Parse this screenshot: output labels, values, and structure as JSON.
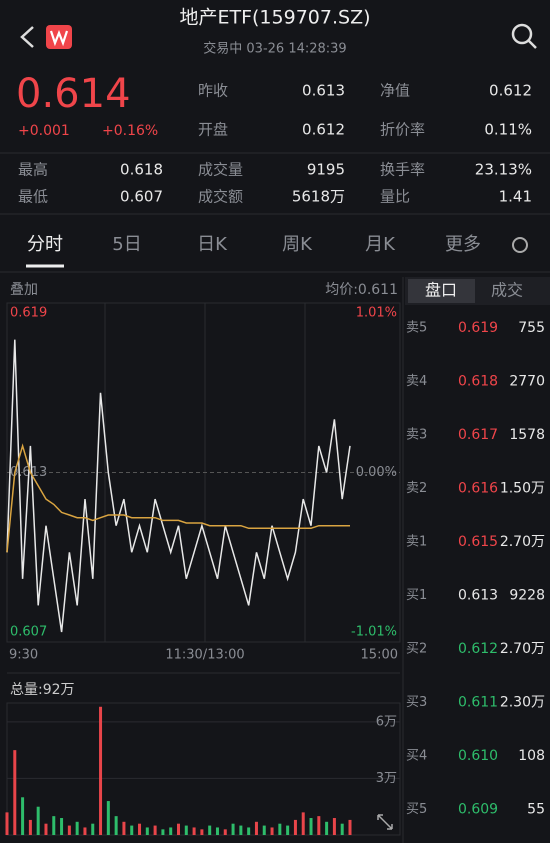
{
  "header": {
    "title": "地产ETF(159707.SZ)",
    "subtitle": "交易中 03-26 14:28:39"
  },
  "quote": {
    "price": "0.614",
    "change": "+0.001",
    "change_pct": "+0.16%"
  },
  "stats": [
    {
      "label": "昨收",
      "value": "0.613"
    },
    {
      "label": "净值",
      "value": "0.612"
    },
    {
      "label": "开盘",
      "value": "0.612"
    },
    {
      "label": "折价率",
      "value": "0.11%"
    },
    {
      "label": "最高",
      "value": "0.618"
    },
    {
      "label": "成交量",
      "value": "9195"
    },
    {
      "label": "换手率",
      "value": "23.13%"
    },
    {
      "label": "最低",
      "value": "0.607"
    },
    {
      "label": "成交额",
      "value": "5618万"
    },
    {
      "label": "量比",
      "value": "1.41"
    }
  ],
  "tabs": [
    "分时",
    "5日",
    "日K",
    "周K",
    "月K",
    "更多"
  ],
  "chart_data": {
    "type": "line",
    "overlay_label": "叠加",
    "avg_label": "均价:0.611",
    "ylim": [
      0.607,
      0.619
    ],
    "yticks": [
      0.619,
      0.613,
      0.607
    ],
    "y2lim": [
      -1.01,
      1.01
    ],
    "y2ticks": [
      {
        "value": 1.01,
        "label": "1.01%"
      },
      {
        "value": 0,
        "label": "0.00%"
      },
      {
        "value": -1.01,
        "label": "-1.01%"
      }
    ],
    "x_labels": [
      "9:30",
      "11:30/13:00",
      "15:00"
    ],
    "series": [
      {
        "color": "#e8e8e8",
        "values": [
          0.61,
          0.618,
          0.609,
          0.614,
          0.608,
          0.611,
          0.609,
          0.607,
          0.61,
          0.608,
          0.612,
          0.609,
          0.616,
          0.613,
          0.611,
          0.612,
          0.61,
          0.611,
          0.61,
          0.612,
          0.611,
          0.61,
          0.611,
          0.609,
          0.61,
          0.611,
          0.61,
          0.609,
          0.611,
          0.61,
          0.609,
          0.608,
          0.61,
          0.609,
          0.611,
          0.61,
          0.609,
          0.61,
          0.612,
          0.611,
          0.614,
          0.613,
          0.615,
          0.612,
          0.614
        ]
      },
      {
        "color": "#d9a441",
        "values": [
          0.61,
          0.613,
          0.614,
          0.613,
          0.6125,
          0.612,
          0.6118,
          0.6115,
          0.6114,
          0.6113,
          0.6113,
          0.6112,
          0.6113,
          0.6114,
          0.6114,
          0.6114,
          0.6113,
          0.6113,
          0.6113,
          0.6113,
          0.6112,
          0.6112,
          0.6112,
          0.6111,
          0.6111,
          0.6111,
          0.611,
          0.611,
          0.611,
          0.611,
          0.611,
          0.6109,
          0.6109,
          0.6109,
          0.6109,
          0.6109,
          0.6109,
          0.6109,
          0.6109,
          0.6109,
          0.611,
          0.611,
          0.611,
          0.611,
          0.611
        ]
      }
    ]
  },
  "volume_chart": {
    "type": "bar",
    "title": "总量:92万",
    "ylim": [
      0,
      7
    ],
    "yticks": [
      {
        "value": 6,
        "label": "6万"
      },
      {
        "value": 3,
        "label": "3万"
      }
    ],
    "values": [
      1.2,
      4.5,
      2.0,
      0.8,
      1.5,
      0.6,
      1.0,
      0.9,
      0.5,
      0.7,
      0.4,
      0.6,
      6.8,
      1.8,
      1.0,
      0.7,
      0.5,
      0.6,
      0.4,
      0.5,
      0.3,
      0.4,
      0.6,
      0.5,
      0.4,
      0.3,
      0.5,
      0.4,
      0.3,
      0.6,
      0.5,
      0.4,
      0.7,
      0.5,
      0.4,
      0.6,
      0.5,
      0.8,
      1.2,
      0.9,
      1.0,
      0.7,
      0.9,
      0.6,
      0.8
    ],
    "colors": [
      "#e8454a",
      "#e8454a",
      "#2ebd6b",
      "#e8454a",
      "#2ebd6b",
      "#e8454a",
      "#2ebd6b",
      "#2ebd6b",
      "#e8454a",
      "#2ebd6b",
      "#e8454a",
      "#2ebd6b",
      "#e8454a",
      "#2ebd6b",
      "#2ebd6b",
      "#e8454a",
      "#2ebd6b",
      "#e8454a",
      "#2ebd6b",
      "#e8454a",
      "#2ebd6b",
      "#2ebd6b",
      "#e8454a",
      "#2ebd6b",
      "#e8454a",
      "#e8454a",
      "#2ebd6b",
      "#2ebd6b",
      "#e8454a",
      "#2ebd6b",
      "#2ebd6b",
      "#2ebd6b",
      "#e8454a",
      "#2ebd6b",
      "#e8454a",
      "#2ebd6b",
      "#2ebd6b",
      "#e8454a",
      "#e8454a",
      "#2ebd6b",
      "#e8454a",
      "#2ebd6b",
      "#e8454a",
      "#2ebd6b",
      "#e8454a"
    ]
  },
  "order_book": {
    "tabs": [
      "盘口",
      "成交"
    ],
    "rows": [
      {
        "side": "卖5",
        "price": "0.619",
        "volume": "755",
        "color": "#f0454a"
      },
      {
        "side": "卖4",
        "price": "0.618",
        "volume": "2770",
        "color": "#f0454a"
      },
      {
        "side": "卖3",
        "price": "0.617",
        "volume": "1578",
        "color": "#f0454a"
      },
      {
        "side": "卖2",
        "price": "0.616",
        "volume": "1.50万",
        "color": "#f0454a"
      },
      {
        "side": "卖1",
        "price": "0.615",
        "volume": "2.70万",
        "color": "#f0454a"
      },
      {
        "side": "买1",
        "price": "0.613",
        "volume": "9228",
        "color": "#e8e8e8"
      },
      {
        "side": "买2",
        "price": "0.612",
        "volume": "2.70万",
        "color": "#2ebd6b"
      },
      {
        "side": "买3",
        "price": "0.611",
        "volume": "2.30万",
        "color": "#2ebd6b"
      },
      {
        "side": "买4",
        "price": "0.610",
        "volume": "108",
        "color": "#2ebd6b"
      },
      {
        "side": "买5",
        "price": "0.609",
        "volume": "55",
        "color": "#2ebd6b"
      }
    ]
  }
}
